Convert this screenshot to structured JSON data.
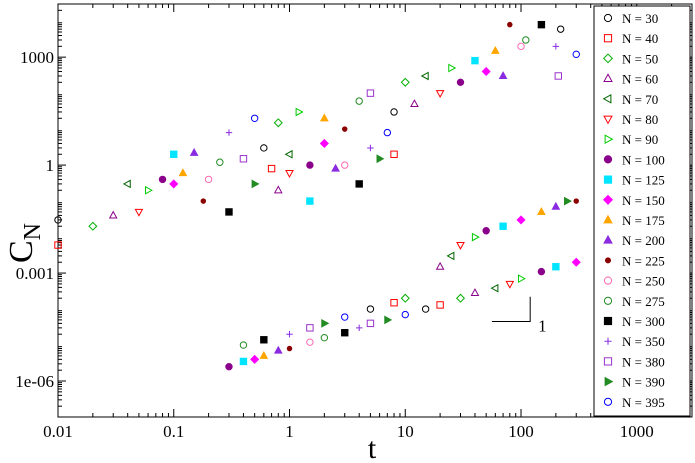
{
  "chart_data": {
    "type": "scatter",
    "xlabel": "t",
    "ylabel": "C",
    "ylabel_subscript": "N",
    "x_scale": "log",
    "y_scale": "log",
    "xlim": [
      0.01,
      3000
    ],
    "ylim": [
      1e-07,
      30000
    ],
    "x_ticks": [
      {
        "value": 0.01,
        "label": "0.01"
      },
      {
        "value": 0.1,
        "label": "0.1"
      },
      {
        "value": 1,
        "label": "1"
      },
      {
        "value": 10,
        "label": "10"
      },
      {
        "value": 100,
        "label": "100"
      },
      {
        "value": 1000,
        "label": "1000"
      }
    ],
    "y_ticks": [
      {
        "value": 1e-06,
        "label": "1e-06"
      },
      {
        "value": 0.001,
        "label": "0.001"
      },
      {
        "value": 1,
        "label": "1"
      },
      {
        "value": 1000,
        "label": "1000"
      }
    ],
    "legend_position": "top-right",
    "grid": false,
    "slope_indicator": {
      "label": "1",
      "x_start": 56,
      "x_end": 120,
      "y_bottom": 4.5e-05,
      "y_top": 0.00022
    },
    "series": [
      {
        "name": "N = 30",
        "marker": "circle-open",
        "color": "#000000"
      },
      {
        "name": "N = 40",
        "marker": "square-open",
        "color": "#ff0000"
      },
      {
        "name": "N = 50",
        "marker": "diamond-open",
        "color": "#00b000"
      },
      {
        "name": "N = 60",
        "marker": "triangle-up-open",
        "color": "#8b008b"
      },
      {
        "name": "N = 70",
        "marker": "triangle-left-open",
        "color": "#006400"
      },
      {
        "name": "N = 80",
        "marker": "triangle-down-open",
        "color": "#ff0000"
      },
      {
        "name": "N = 90",
        "marker": "triangle-right-open",
        "color": "#00cc00"
      },
      {
        "name": "N = 100",
        "marker": "circle-filled",
        "color": "#8b008b"
      },
      {
        "name": "N = 125",
        "marker": "square-filled",
        "color": "#00e5ff"
      },
      {
        "name": "N = 150",
        "marker": "diamond-filled",
        "color": "#ff00ff"
      },
      {
        "name": "N = 175",
        "marker": "triangle-up-filled",
        "color": "#ffa500"
      },
      {
        "name": "N = 200",
        "marker": "triangle-up-filled",
        "color": "#8a2be2"
      },
      {
        "name": "N = 225",
        "marker": "circle-small-filled",
        "color": "#8b0000"
      },
      {
        "name": "N = 250",
        "marker": "circle-open",
        "color": "#ff69b4"
      },
      {
        "name": "N = 275",
        "marker": "circle-open",
        "color": "#228b22"
      },
      {
        "name": "N = 300",
        "marker": "square-filled-hollow",
        "color": "#000000"
      },
      {
        "name": "N = 350",
        "marker": "plus",
        "color": "#8a2be2"
      },
      {
        "name": "N = 380",
        "marker": "square-open",
        "color": "#9932cc"
      },
      {
        "name": "N = 390",
        "marker": "triangle-right-filled",
        "color": "#228b22"
      },
      {
        "name": "N = 395",
        "marker": "circle-open",
        "color": "#0000ff"
      }
    ],
    "clusters": [
      {
        "name": "upper",
        "points": [
          [
            0.01,
            0.03
          ],
          [
            0.01,
            0.006
          ],
          [
            0.02,
            0.02
          ],
          [
            0.03,
            0.04
          ],
          [
            0.04,
            0.3
          ],
          [
            0.05,
            0.05
          ],
          [
            0.06,
            0.2
          ],
          [
            0.08,
            0.4
          ],
          [
            0.1,
            2
          ],
          [
            0.1,
            0.3
          ],
          [
            0.12,
            0.6
          ],
          [
            0.15,
            2.2
          ],
          [
            0.18,
            0.1
          ],
          [
            0.2,
            0.4
          ],
          [
            0.25,
            1.2
          ],
          [
            0.3,
            0.05
          ],
          [
            0.3,
            8
          ],
          [
            0.4,
            1.5
          ],
          [
            0.5,
            0.3
          ],
          [
            0.5,
            20
          ],
          [
            0.6,
            3
          ],
          [
            0.7,
            0.8
          ],
          [
            0.8,
            15
          ],
          [
            0.8,
            0.2
          ],
          [
            1,
            2
          ],
          [
            1,
            0.6
          ],
          [
            1.2,
            30
          ],
          [
            1.5,
            1
          ],
          [
            1.5,
            0.1
          ],
          [
            2,
            4
          ],
          [
            2,
            20
          ],
          [
            2.5,
            0.8
          ],
          [
            3,
            10
          ],
          [
            3,
            1
          ],
          [
            4,
            60
          ],
          [
            4,
            0.3
          ],
          [
            5,
            3
          ],
          [
            5,
            100
          ],
          [
            6,
            1.5
          ],
          [
            7,
            8
          ],
          [
            8,
            30
          ],
          [
            8,
            2
          ],
          [
            10,
            200
          ],
          [
            12,
            50
          ],
          [
            15,
            300
          ],
          [
            20,
            100
          ],
          [
            25,
            500
          ],
          [
            30,
            200
          ],
          [
            40,
            800
          ],
          [
            50,
            400
          ],
          [
            60,
            1500
          ],
          [
            70,
            300
          ],
          [
            80,
            8000
          ],
          [
            100,
            2000
          ],
          [
            110,
            3000
          ],
          [
            150,
            8000
          ],
          [
            200,
            2000
          ],
          [
            210,
            300
          ],
          [
            250,
            0.1
          ],
          [
            300,
            1200
          ],
          [
            220,
            6000
          ]
        ]
      },
      {
        "name": "lower",
        "points": [
          [
            0.3,
            2.5e-06
          ],
          [
            0.4,
            3.5e-06
          ],
          [
            0.5,
            4e-06
          ],
          [
            0.6,
            5e-06
          ],
          [
            0.8,
            7e-06
          ],
          [
            1,
            8e-06
          ],
          [
            1.5,
            1.2e-05
          ],
          [
            2,
            1.6e-05
          ],
          [
            3,
            2.2e-05
          ],
          [
            4,
            3e-05
          ],
          [
            5,
            4e-05
          ],
          [
            7,
            5e-05
          ],
          [
            10,
            7e-05
          ],
          [
            15,
            0.0001
          ],
          [
            20,
            0.00013
          ],
          [
            30,
            0.0002
          ],
          [
            40,
            0.00028
          ],
          [
            60,
            0.00038
          ],
          [
            80,
            0.0005
          ],
          [
            100,
            0.0007
          ],
          [
            150,
            0.0011
          ],
          [
            200,
            0.0015
          ],
          [
            300,
            0.002
          ]
        ]
      },
      {
        "name": "middle",
        "points": [
          [
            0.4,
            1e-05
          ],
          [
            0.6,
            1.4e-05
          ],
          [
            1,
            2e-05
          ],
          [
            1.5,
            3e-05
          ],
          [
            2,
            4e-05
          ],
          [
            3,
            6e-05
          ],
          [
            5,
            0.0001
          ],
          [
            8,
            0.00015
          ],
          [
            10,
            0.0002
          ],
          [
            20,
            0.0015
          ],
          [
            25,
            0.003
          ],
          [
            30,
            0.006
          ],
          [
            40,
            0.01
          ],
          [
            50,
            0.015
          ],
          [
            70,
            0.02
          ],
          [
            100,
            0.03
          ],
          [
            150,
            0.05
          ],
          [
            200,
            0.07
          ],
          [
            300,
            0.1
          ]
        ]
      }
    ]
  }
}
